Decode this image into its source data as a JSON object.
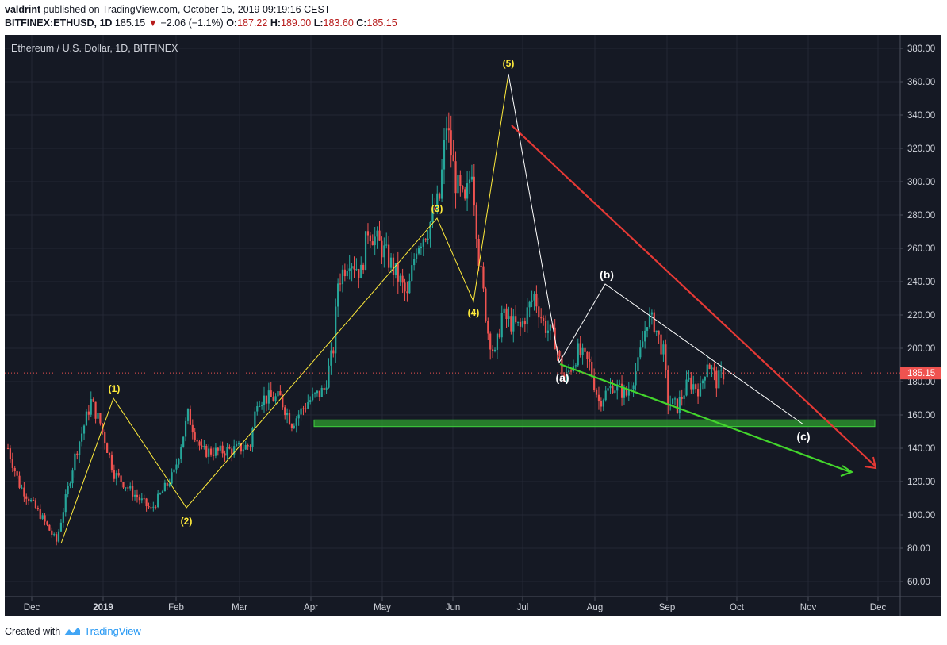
{
  "header": {
    "author": "valdrint",
    "published_text": "published on TradingView.com, October 15, 2019 09:19:16 CEST",
    "symbol": "BITFINEX:ETHUSD, 1D",
    "last": "185.15",
    "arrow": "▼",
    "change": "−2.06 (−1.1%)",
    "o_label": "O:",
    "o_value": "187.22",
    "h_label": "H:",
    "h_value": "189.00",
    "l_label": "L:",
    "l_value": "183.60",
    "c_label": "C:",
    "c_value": "185.15"
  },
  "chart_data": {
    "type": "candlestick",
    "title": "Ethereum / U.S. Dollar, 1D, BITFINEX",
    "y_ticks": [
      "380.00",
      "360.00",
      "340.00",
      "320.00",
      "300.00",
      "280.00",
      "260.00",
      "240.00",
      "220.00",
      "200.00",
      "180.00",
      "160.00",
      "140.00",
      "120.00",
      "100.00",
      "80.00",
      "60.00"
    ],
    "ylim": [
      50,
      390
    ],
    "x_ticks": [
      "Dec",
      "2019",
      "Feb",
      "Mar",
      "Apr",
      "May",
      "Jun",
      "Jul",
      "Aug",
      "Sep",
      "Oct",
      "Nov",
      "Dec"
    ],
    "last_price": 185.15,
    "last_price_label": "185.15",
    "anchors": [
      {
        "day": 0,
        "price": 140
      },
      {
        "day": 5,
        "price": 118
      },
      {
        "day": 14,
        "price": 100
      },
      {
        "day": 21,
        "price": 84
      },
      {
        "day": 29,
        "price": 135
      },
      {
        "day": 36,
        "price": 168
      },
      {
        "day": 40,
        "price": 155
      },
      {
        "day": 46,
        "price": 125
      },
      {
        "day": 55,
        "price": 112
      },
      {
        "day": 62,
        "price": 103
      },
      {
        "day": 72,
        "price": 125
      },
      {
        "day": 78,
        "price": 160
      },
      {
        "day": 84,
        "price": 138
      },
      {
        "day": 92,
        "price": 138
      },
      {
        "day": 101,
        "price": 140
      },
      {
        "day": 105,
        "price": 142
      },
      {
        "day": 108,
        "price": 170
      },
      {
        "day": 118,
        "price": 170
      },
      {
        "day": 123,
        "price": 155
      },
      {
        "day": 130,
        "price": 168
      },
      {
        "day": 137,
        "price": 175
      },
      {
        "day": 141,
        "price": 200
      },
      {
        "day": 143,
        "price": 240
      },
      {
        "day": 148,
        "price": 255
      },
      {
        "day": 153,
        "price": 245
      },
      {
        "day": 156,
        "price": 272
      },
      {
        "day": 163,
        "price": 258
      },
      {
        "day": 170,
        "price": 240
      },
      {
        "day": 173,
        "price": 230
      },
      {
        "day": 177,
        "price": 262
      },
      {
        "day": 182,
        "price": 272
      },
      {
        "day": 187,
        "price": 290
      },
      {
        "day": 190,
        "price": 335
      },
      {
        "day": 194,
        "price": 300
      },
      {
        "day": 198,
        "price": 285
      },
      {
        "day": 201,
        "price": 310
      },
      {
        "day": 204,
        "price": 255
      },
      {
        "day": 208,
        "price": 210
      },
      {
        "day": 211,
        "price": 195
      },
      {
        "day": 214,
        "price": 220
      },
      {
        "day": 218,
        "price": 215
      },
      {
        "day": 222,
        "price": 212
      },
      {
        "day": 228,
        "price": 232
      },
      {
        "day": 232,
        "price": 215
      },
      {
        "day": 237,
        "price": 205
      },
      {
        "day": 241,
        "price": 180
      },
      {
        "day": 247,
        "price": 198
      },
      {
        "day": 252,
        "price": 190
      },
      {
        "day": 256,
        "price": 168
      },
      {
        "day": 262,
        "price": 178
      },
      {
        "day": 268,
        "price": 172
      },
      {
        "day": 273,
        "price": 190
      },
      {
        "day": 277,
        "price": 218
      },
      {
        "day": 280,
        "price": 215
      },
      {
        "day": 284,
        "price": 197
      },
      {
        "day": 286,
        "price": 168
      },
      {
        "day": 290,
        "price": 165
      },
      {
        "day": 295,
        "price": 180
      },
      {
        "day": 300,
        "price": 175
      },
      {
        "day": 303,
        "price": 193
      },
      {
        "day": 307,
        "price": 180
      },
      {
        "day": 310,
        "price": 185
      }
    ],
    "wave_labels": [
      "(1)",
      "(2)",
      "(3)",
      "(4)",
      "(5)",
      "(a)",
      "(b)",
      "(c)"
    ],
    "support_zone": [
      153,
      157
    ]
  },
  "footer": {
    "created_with": "Created with",
    "brand": "TradingView"
  },
  "colors": {
    "chart_bg": "#151924",
    "bull": "#26a69a",
    "bear": "#ef5350",
    "impulse": "#ffeb3b",
    "correction": "#ffffff",
    "resistance": "#e53935",
    "support": "#43d62c",
    "zone": "#2e9e2e",
    "price_line": "#ef5350"
  }
}
